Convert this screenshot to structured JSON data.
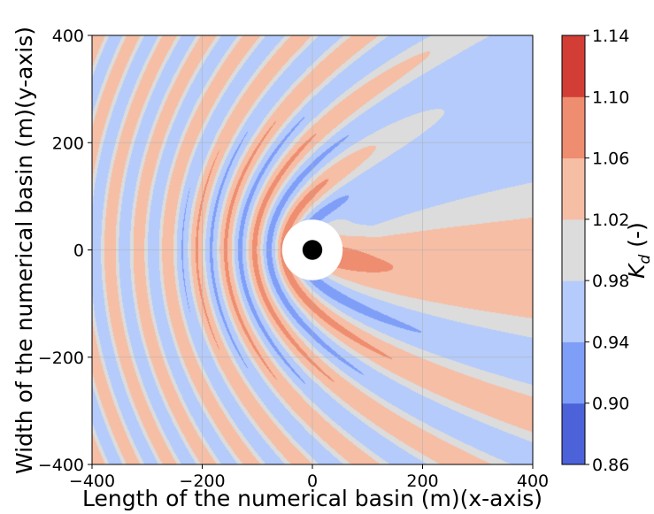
{
  "chart_data": {
    "type": "heatmap",
    "subtype": "filled-contour",
    "xlabel": "Length of the numerical basin (m)(x-axis)",
    "ylabel": "Width of the numerical basin (m)(y-axis)",
    "xlim": [
      -400,
      400
    ],
    "ylim": [
      -400,
      400
    ],
    "x_ticks": [
      -400,
      -200,
      0,
      200,
      400
    ],
    "y_ticks": [
      -400,
      -200,
      0,
      200,
      400
    ],
    "x_tick_labels": [
      "−400",
      "−200",
      "0",
      "200",
      "400"
    ],
    "y_tick_labels": [
      "−400",
      "−200",
      "0",
      "200",
      "400"
    ],
    "grid": true,
    "colorbar": {
      "label": "K_d (-)",
      "label_main": "K",
      "label_sub": "d",
      "label_suffix": " (-)",
      "levels": [
        0.86,
        0.9,
        0.94,
        0.98,
        1.02,
        1.06,
        1.1,
        1.14
      ],
      "level_labels": [
        "0.86",
        "0.90",
        "0.94",
        "0.98",
        "1.02",
        "1.06",
        "1.10",
        "1.14"
      ],
      "colors": [
        "#4b62d8",
        "#7f9ef7",
        "#b4cbfb",
        "#dcdcdc",
        "#f6bea5",
        "#ee8d6f",
        "#d23e36"
      ]
    },
    "cylinder": {
      "center": [
        0,
        0
      ],
      "core_radius": 18,
      "clear_radius": 55,
      "core_color": "#000000",
      "clear_color": "#ffffff"
    }
  }
}
